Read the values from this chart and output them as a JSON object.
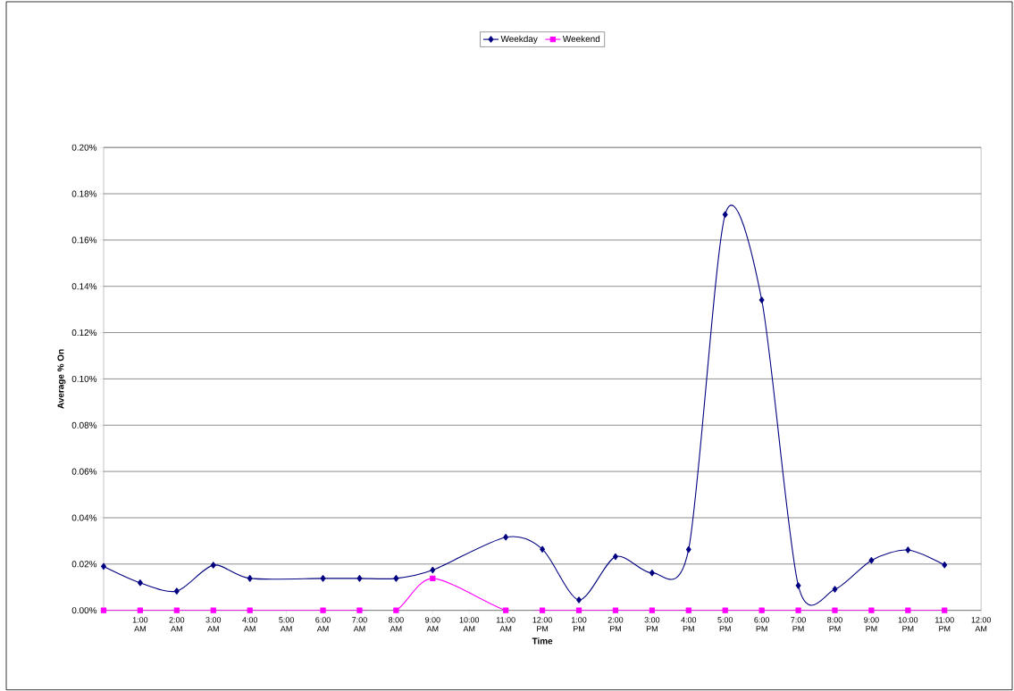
{
  "chart_data": {
    "type": "line",
    "xlabel": "Time",
    "ylabel": "Average % On",
    "x": [
      0,
      1,
      2,
      3,
      4,
      5,
      6,
      7,
      8,
      9,
      10,
      11,
      12,
      13,
      14,
      15,
      16,
      17,
      18,
      19,
      20,
      21,
      22,
      23
    ],
    "xlim": [
      0,
      24
    ],
    "xticks": [
      {
        "value": 0,
        "label": null
      },
      {
        "value": 1,
        "label": "1:00 AM"
      },
      {
        "value": 2,
        "label": "2:00 AM"
      },
      {
        "value": 3,
        "label": "3:00 AM"
      },
      {
        "value": 4,
        "label": "4:00 AM"
      },
      {
        "value": 5,
        "label": "5:00 AM"
      },
      {
        "value": 6,
        "label": "6:00 AM"
      },
      {
        "value": 7,
        "label": "7:00 AM"
      },
      {
        "value": 8,
        "label": "8:00 AM"
      },
      {
        "value": 9,
        "label": "9:00 AM"
      },
      {
        "value": 10,
        "label": "10:00 AM"
      },
      {
        "value": 11,
        "label": "11:00 AM"
      },
      {
        "value": 12,
        "label": "12:00 PM"
      },
      {
        "value": 13,
        "label": "1:00 PM"
      },
      {
        "value": 14,
        "label": "2:00 PM"
      },
      {
        "value": 15,
        "label": "3:00 PM"
      },
      {
        "value": 16,
        "label": "4:00 PM"
      },
      {
        "value": 17,
        "label": "5:00 PM"
      },
      {
        "value": 18,
        "label": "6:00 PM"
      },
      {
        "value": 19,
        "label": "7:00 PM"
      },
      {
        "value": 20,
        "label": "8:00 PM"
      },
      {
        "value": 21,
        "label": "9:00 PM"
      },
      {
        "value": 22,
        "label": "10:00 PM"
      },
      {
        "value": 23,
        "label": "11:00 PM"
      },
      {
        "value": 24,
        "label": "12:00 AM"
      }
    ],
    "ylim": [
      0,
      0.2
    ],
    "yticks": [
      {
        "value": 0,
        "label": "0.00%"
      },
      {
        "value": 0.02,
        "label": "0.02%"
      },
      {
        "value": 0.04,
        "label": "0.04%"
      },
      {
        "value": 0.06,
        "label": "0.06%"
      },
      {
        "value": 0.08,
        "label": "0.08%"
      },
      {
        "value": 0.1,
        "label": "0.10%"
      },
      {
        "value": 0.12,
        "label": "0.12%"
      },
      {
        "value": 0.14,
        "label": "0.14%"
      },
      {
        "value": 0.16,
        "label": "0.16%"
      },
      {
        "value": 0.18,
        "label": "0.18%"
      },
      {
        "value": 0.2,
        "label": "0.20%"
      }
    ],
    "grid": "y",
    "legend": "top",
    "line_style": "solid",
    "series": [
      {
        "name": "Weekday",
        "color": "#000080",
        "marker": "diamond",
        "values": [
          0.019,
          0.0119,
          0.0083,
          0.0195,
          0.0138,
          null,
          0.0138,
          0.0138,
          0.0138,
          0.0174,
          null,
          0.0316,
          0.0264,
          0.0045,
          0.0232,
          0.0162,
          0.0263,
          0.171,
          0.1341,
          0.0107,
          0.0091,
          0.0216,
          0.0261,
          0.0196
        ]
      },
      {
        "name": "Weekend",
        "color": "#ff00ff",
        "marker": "square",
        "values": [
          0,
          0,
          0,
          0,
          0,
          null,
          0,
          0,
          0,
          0.0138,
          null,
          0,
          0,
          0,
          0,
          0,
          0,
          0,
          0,
          0,
          0,
          0,
          0,
          0
        ]
      }
    ]
  }
}
